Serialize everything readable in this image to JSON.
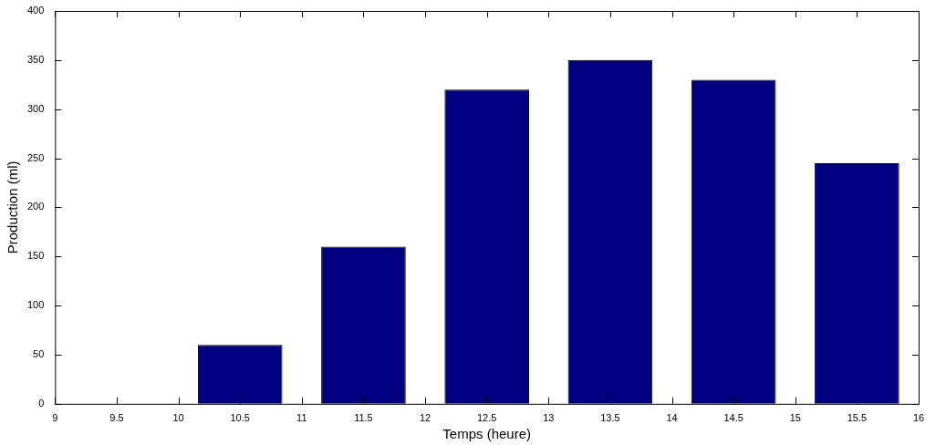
{
  "chart_data": {
    "type": "bar",
    "xlabel": "Temps (heure)",
    "ylabel": "Production (ml)",
    "x": [
      10.5,
      11.5,
      12.5,
      13.5,
      14.5,
      15.5
    ],
    "values": [
      60,
      160,
      320,
      350,
      330,
      245
    ],
    "color": "#000080",
    "xlim": [
      9,
      16
    ],
    "xticks": [
      9,
      9.5,
      10,
      10.5,
      11,
      11.5,
      12,
      12.5,
      13,
      13.5,
      14,
      14.5,
      15,
      15.5,
      16
    ],
    "ylim": [
      0,
      400
    ],
    "yticks": [
      0,
      50,
      100,
      150,
      200,
      250,
      300,
      350,
      400
    ],
    "grid": false,
    "legend": false
  }
}
